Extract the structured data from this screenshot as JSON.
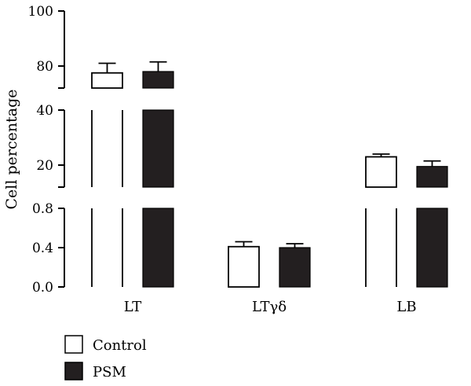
{
  "chart_data": {
    "type": "bar",
    "title": "",
    "xlabel": "",
    "ylabel": "Cell percentage",
    "categories": [
      "LT",
      "LTγδ",
      "LB"
    ],
    "series": [
      {
        "name": "Control",
        "color": "#ffffff",
        "values": [
          77.5,
          0.41,
          23.0
        ],
        "errors": [
          3.5,
          0.05,
          1.0
        ]
      },
      {
        "name": "PSM",
        "color": "#231f20",
        "values": [
          78.0,
          0.4,
          19.5
        ],
        "errors": [
          3.5,
          0.04,
          2.0
        ]
      }
    ],
    "y_axis": {
      "type": "broken",
      "segments": [
        {
          "range": [
            0.0,
            0.8
          ],
          "ticks": [
            0.0,
            0.4,
            0.8
          ],
          "tick_labels": [
            "0.0",
            "0.4",
            "0.8"
          ]
        },
        {
          "range": [
            12,
            40
          ],
          "ticks": [
            20,
            40
          ],
          "tick_labels": [
            "20",
            "40"
          ]
        },
        {
          "range": [
            72,
            100
          ],
          "ticks": [
            80,
            100
          ],
          "tick_labels": [
            "80",
            "100"
          ]
        }
      ]
    },
    "legend": {
      "position": "bottom-left",
      "entries": [
        "Control",
        "PSM"
      ]
    },
    "grid": false
  }
}
